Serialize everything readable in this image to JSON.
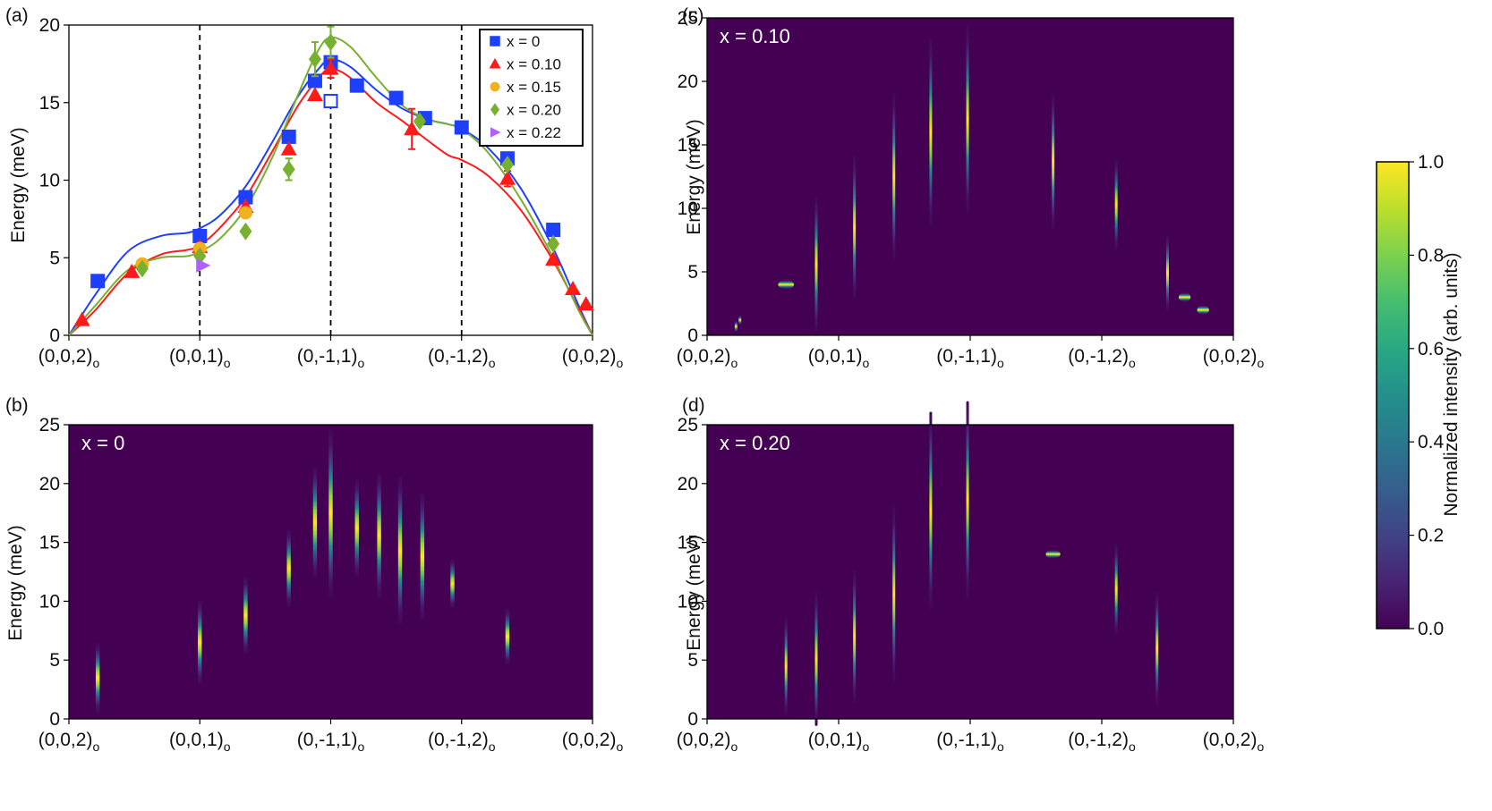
{
  "figure": {
    "hsym_labels": [
      "(0,0,2)",
      "(0,0,1)",
      "(0,-1,1)",
      "(0,-1,2)",
      "(0,0,2)"
    ],
    "hsym_subscript": "o",
    "ylabel": "Energy (meV)",
    "colorbar_label": "Normalized intensity (arb. units)",
    "colorbar_ticks": [
      "0.0",
      "0.2",
      "0.4",
      "0.6",
      "0.8",
      "1.0"
    ],
    "colors": {
      "background_cmap": "#440154",
      "x0": "#1f3fff",
      "x010": "#ff1a1a",
      "x015": "#f0b020",
      "x020": "#78b030",
      "x022": "#b060ff"
    }
  },
  "chart_data": [
    {
      "panel": "(a)",
      "type": "scatter",
      "title": "",
      "xlabel": "",
      "ylabel": "Energy (meV)",
      "ylim": [
        0,
        20
      ],
      "yticks": [
        "0",
        "5",
        "10",
        "15",
        "20"
      ],
      "xlim": [
        0,
        4
      ],
      "dashed_lines_x": [
        1,
        2,
        3
      ],
      "legend_position": "top-right",
      "series": [
        {
          "name": "x = 0",
          "marker": "square",
          "color": "#1f3fff",
          "x": [
            0.22,
            1.0,
            1.35,
            1.68,
            1.88,
            2.0,
            2.2,
            2.5,
            2.72,
            3.0,
            3.35,
            3.7
          ],
          "y": [
            3.5,
            6.4,
            8.9,
            12.8,
            16.4,
            17.6,
            16.1,
            15.3,
            14.0,
            13.4,
            11.4,
            6.8
          ],
          "err": [
            0,
            0,
            0,
            0,
            0,
            0,
            0,
            0,
            0,
            0,
            0,
            0
          ],
          "open_point": {
            "x": 2.0,
            "y": 15.1
          }
        },
        {
          "name": "x = 0.10",
          "marker": "triangle",
          "color": "#ff1a1a",
          "x": [
            0.1,
            0.48,
            1.0,
            1.35,
            1.68,
            1.88,
            2.0,
            2.62,
            3.35,
            3.7,
            3.85,
            3.95
          ],
          "y": [
            1.0,
            4.1,
            5.7,
            8.3,
            12.0,
            15.5,
            17.2,
            13.3,
            10.1,
            4.9,
            3.0,
            2.0
          ],
          "err": [
            0,
            0,
            0,
            0,
            0,
            0,
            0.6,
            1.3,
            0.5,
            0,
            0,
            0
          ]
        },
        {
          "name": "x = 0.15",
          "marker": "circle",
          "color": "#f0b020",
          "x": [
            0.56,
            1.0,
            1.35
          ],
          "y": [
            4.6,
            5.6,
            7.9
          ],
          "err": [
            0,
            0,
            0
          ]
        },
        {
          "name": "x = 0.20",
          "marker": "diamond",
          "color": "#78b030",
          "x": [
            0.56,
            1.0,
            1.35,
            1.68,
            1.88,
            2.0,
            2.68,
            3.35,
            3.7
          ],
          "y": [
            4.3,
            5.1,
            6.7,
            10.7,
            17.8,
            18.9,
            13.8,
            11.0,
            5.9
          ],
          "err": [
            0,
            0,
            0,
            0.7,
            1.1,
            1.0,
            0,
            0,
            0
          ]
        },
        {
          "name": "x = 0.22",
          "marker": "triangle-right",
          "color": "#b060ff",
          "x": [
            1.02
          ],
          "y": [
            4.5
          ],
          "err": [
            0
          ]
        }
      ],
      "fit_curves": [
        {
          "name": "x = 0",
          "color": "#1f3fff",
          "x": [
            0,
            0.2,
            0.45,
            0.7,
            0.9,
            1.0,
            1.15,
            1.35,
            1.55,
            1.75,
            1.9,
            2.0,
            2.15,
            2.35,
            2.55,
            2.75,
            2.9,
            3.0,
            3.2,
            3.45,
            3.7,
            3.9,
            4.0
          ],
          "y": [
            0,
            2.6,
            5.4,
            6.4,
            6.6,
            6.9,
            7.7,
            9.6,
            12.4,
            15.4,
            17.1,
            17.8,
            17.3,
            15.8,
            14.6,
            13.9,
            13.6,
            13.3,
            12.1,
            9.5,
            5.6,
            1.8,
            0
          ]
        },
        {
          "name": "x = 0.10",
          "color": "#ff1a1a",
          "x": [
            0,
            0.2,
            0.45,
            0.7,
            0.9,
            1.0,
            1.15,
            1.35,
            1.55,
            1.75,
            1.9,
            2.0,
            2.15,
            2.35,
            2.55,
            2.75,
            2.9,
            3.0,
            3.2,
            3.45,
            3.7,
            3.9,
            4.0
          ],
          "y": [
            0,
            1.6,
            4.0,
            5.2,
            5.5,
            5.8,
            6.9,
            8.9,
            11.8,
            14.8,
            16.5,
            17.2,
            16.6,
            15.0,
            13.8,
            12.5,
            11.6,
            11.3,
            10.3,
            8.1,
            4.8,
            1.6,
            0
          ]
        },
        {
          "name": "x = 0.20",
          "color": "#78b030",
          "x": [
            0,
            0.2,
            0.45,
            0.7,
            0.9,
            1.0,
            1.15,
            1.35,
            1.55,
            1.75,
            1.9,
            2.0,
            2.15,
            2.35,
            2.55,
            2.75,
            2.9,
            3.0,
            3.2,
            3.45,
            3.7,
            3.9,
            4.0
          ],
          "y": [
            0,
            1.9,
            4.2,
            5.0,
            5.1,
            5.4,
            6.2,
            8.2,
            11.4,
            15.5,
            18.3,
            19.2,
            18.6,
            16.6,
            14.8,
            13.9,
            13.6,
            13.3,
            11.8,
            8.8,
            5.0,
            1.5,
            0
          ]
        }
      ]
    },
    {
      "panel": "(b)",
      "type": "heatmap",
      "label": "x = 0",
      "ylabel": "Energy (meV)",
      "ylim": [
        0,
        25
      ],
      "yticks": [
        "0",
        "5",
        "10",
        "15",
        "20",
        "25"
      ],
      "xlim": [
        0,
        4
      ],
      "streaks": [
        {
          "x": 0.22,
          "E": 3.5,
          "s": 1.0,
          "w": 0.03
        },
        {
          "x": 1.0,
          "E": 6.5,
          "s": 1.2,
          "w": 0.03
        },
        {
          "x": 1.35,
          "E": 8.8,
          "s": 1.1,
          "w": 0.03
        },
        {
          "x": 1.68,
          "E": 12.8,
          "s": 1.1,
          "w": 0.03
        },
        {
          "x": 1.88,
          "E": 16.7,
          "s": 1.6,
          "w": 0.03
        },
        {
          "x": 2.0,
          "E": 17.5,
          "s": 2.4,
          "w": 0.03
        },
        {
          "x": 2.2,
          "E": 16.2,
          "s": 1.4,
          "w": 0.03
        },
        {
          "x": 2.37,
          "E": 15.6,
          "s": 1.8,
          "w": 0.03
        },
        {
          "x": 2.53,
          "E": 14.3,
          "s": 2.1,
          "w": 0.03
        },
        {
          "x": 2.7,
          "E": 13.8,
          "s": 1.8,
          "w": 0.03
        },
        {
          "x": 2.93,
          "E": 11.5,
          "s": 0.7,
          "w": 0.03
        },
        {
          "x": 3.35,
          "E": 7.0,
          "s": 0.8,
          "w": 0.03
        }
      ]
    },
    {
      "panel": "(c)",
      "type": "heatmap",
      "label": "x = 0.10",
      "ylabel": "Energy (meV)",
      "ylim": [
        0,
        25
      ],
      "yticks": [
        "0",
        "5",
        "10",
        "15",
        "20",
        "25"
      ],
      "xlim": [
        0,
        4
      ],
      "streaks": [
        {
          "x": 0.22,
          "E": 0.7,
          "s": 0.15,
          "w": 0.012
        },
        {
          "x": 0.25,
          "E": 1.2,
          "s": 0.12,
          "w": 0.012
        },
        {
          "x": 0.6,
          "E": 4.0,
          "s": 0.12,
          "w": 0.12
        },
        {
          "x": 0.83,
          "E": 5.6,
          "s": 1.8,
          "w": 0.02
        },
        {
          "x": 1.12,
          "E": 8.5,
          "s": 1.9,
          "w": 0.02
        },
        {
          "x": 1.42,
          "E": 12.5,
          "s": 2.2,
          "w": 0.02
        },
        {
          "x": 1.7,
          "E": 16.0,
          "s": 2.5,
          "w": 0.02
        },
        {
          "x": 1.98,
          "E": 17.0,
          "s": 2.5,
          "w": 0.02
        },
        {
          "x": 2.63,
          "E": 13.7,
          "s": 1.8,
          "w": 0.02
        },
        {
          "x": 3.11,
          "E": 10.3,
          "s": 1.2,
          "w": 0.02
        },
        {
          "x": 3.5,
          "E": 4.9,
          "s": 1.0,
          "w": 0.02
        },
        {
          "x": 3.63,
          "E": 3.0,
          "s": 0.12,
          "w": 0.09
        },
        {
          "x": 3.77,
          "E": 2.0,
          "s": 0.12,
          "w": 0.09
        }
      ]
    },
    {
      "panel": "(d)",
      "type": "heatmap",
      "label": "x = 0.20",
      "ylabel": "Energy (meV)",
      "ylim": [
        0,
        25
      ],
      "yticks": [
        "0",
        "5",
        "10",
        "15",
        "20",
        "25"
      ],
      "xlim": [
        0,
        4
      ],
      "streaks": [
        {
          "x": 0.6,
          "E": 4.5,
          "s": 1.4,
          "w": 0.02
        },
        {
          "x": 0.83,
          "E": 5.1,
          "s": 1.9,
          "w": 0.02
        },
        {
          "x": 1.12,
          "E": 7.0,
          "s": 1.9,
          "w": 0.02
        },
        {
          "x": 1.42,
          "E": 10.6,
          "s": 2.5,
          "w": 0.02
        },
        {
          "x": 1.7,
          "E": 17.7,
          "s": 2.8,
          "w": 0.02
        },
        {
          "x": 1.98,
          "E": 18.6,
          "s": 2.8,
          "w": 0.02
        },
        {
          "x": 2.63,
          "E": 14.0,
          "s": 0.12,
          "w": 0.11
        },
        {
          "x": 3.11,
          "E": 11.0,
          "s": 1.3,
          "w": 0.02
        },
        {
          "x": 3.42,
          "E": 6.0,
          "s": 1.6,
          "w": 0.02
        }
      ]
    }
  ]
}
